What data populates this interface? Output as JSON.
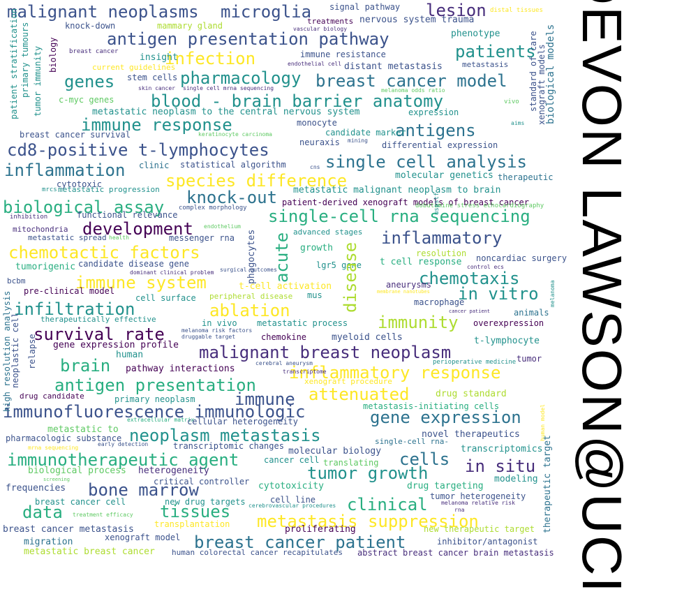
{
  "title": "DEVON LAWSON@UCI",
  "palette": {
    "p1": "#440154",
    "p2": "#472d7b",
    "p3": "#3b528b",
    "p4": "#2c728e",
    "p5": "#21918c",
    "p6": "#28ae80",
    "p7": "#5ec962",
    "p8": "#addc30",
    "p9": "#fde725"
  },
  "words": [
    {
      "text": "malignant neoplasms",
      "color": "#3b528b",
      "v": false
    },
    {
      "text": "microglia",
      "color": "#3b528b",
      "v": false
    },
    {
      "text": "lesion",
      "color": "#472d7b",
      "v": false
    },
    {
      "text": "signal pathway",
      "color": "#3b528b",
      "v": false
    },
    {
      "text": "distal tissues",
      "color": "#fde725",
      "v": false
    },
    {
      "text": "knock-down",
      "color": "#3b528b",
      "v": false
    },
    {
      "text": "mammary gland",
      "color": "#addc30",
      "v": false
    },
    {
      "text": "treatments",
      "color": "#440154",
      "v": false
    },
    {
      "text": "nervous system trauma",
      "color": "#3b528b",
      "v": false
    },
    {
      "text": "vascular biology",
      "color": "#472d7b",
      "v": false
    },
    {
      "text": "antigen presentation pathway",
      "color": "#3b528b",
      "v": false
    },
    {
      "text": "phenotype",
      "color": "#21918c",
      "v": false
    },
    {
      "text": "breast cancer",
      "color": "#472d7b",
      "v": false
    },
    {
      "text": "infection",
      "color": "#fde725",
      "v": false
    },
    {
      "text": "patients",
      "color": "#21918c",
      "v": false
    },
    {
      "text": "immune resistance",
      "color": "#3b528b",
      "v": false
    },
    {
      "text": "insight",
      "color": "#21918c",
      "v": false
    },
    {
      "text": "current guidelines",
      "color": "#fde725",
      "v": false
    },
    {
      "text": "endothelial cell",
      "color": "#472d7b",
      "v": false
    },
    {
      "text": "distant metastasis",
      "color": "#3b528b",
      "v": false
    },
    {
      "text": "metastasis",
      "color": "#3b528b",
      "v": false
    },
    {
      "text": "genes",
      "color": "#21918c",
      "v": false
    },
    {
      "text": "stem cells",
      "color": "#3b528b",
      "v": false
    },
    {
      "text": "pharmacology",
      "color": "#21918c",
      "v": false
    },
    {
      "text": "breast cancer model",
      "color": "#2c728e",
      "v": false
    },
    {
      "text": "skin cancer",
      "color": "#472d7b",
      "v": false
    },
    {
      "text": "single cell mrna sequencing",
      "color": "#472d7b",
      "v": false
    },
    {
      "text": "melanoma odds ratio",
      "color": "#5ec962",
      "v": false
    },
    {
      "text": "c-myc genes",
      "color": "#5ec962",
      "v": false
    },
    {
      "text": "blood - brain barrier anatomy",
      "color": "#21918c",
      "v": false
    },
    {
      "text": "metastatic neoplasm to the central nervous system",
      "color": "#21918c",
      "v": false
    },
    {
      "text": "expression",
      "color": "#21918c",
      "v": false
    },
    {
      "text": "vivo",
      "color": "#5ec962",
      "v": false
    },
    {
      "text": "immune response",
      "color": "#21918c",
      "v": false
    },
    {
      "text": "monocyte",
      "color": "#3b528b",
      "v": false
    },
    {
      "text": "aims",
      "color": "#21918c",
      "v": false
    },
    {
      "text": "antigens",
      "color": "#2c728e",
      "v": false
    },
    {
      "text": "breast cancer survival",
      "color": "#3b528b",
      "v": false
    },
    {
      "text": "keratinocyte carcinoma",
      "color": "#5ec962",
      "v": false
    },
    {
      "text": "candidate marker",
      "color": "#21918c",
      "v": false
    },
    {
      "text": "neuraxis",
      "color": "#3b528b",
      "v": false
    },
    {
      "text": "mining",
      "color": "#3b528b",
      "v": false
    },
    {
      "text": "differential expression",
      "color": "#3b528b",
      "v": false
    },
    {
      "text": "cd8-positive t-lymphocytes",
      "color": "#3b528b",
      "v": false
    },
    {
      "text": "inflammation",
      "color": "#2c728e",
      "v": false
    },
    {
      "text": "clinic",
      "color": "#2c728e",
      "v": false
    },
    {
      "text": "statistical algorithm",
      "color": "#3b528b",
      "v": false
    },
    {
      "text": "cns",
      "color": "#3b528b",
      "v": false
    },
    {
      "text": "single cell analysis",
      "color": "#2c728e",
      "v": false
    },
    {
      "text": "molecular genetics",
      "color": "#21918c",
      "v": false
    },
    {
      "text": "therapeutic",
      "color": "#2c728e",
      "v": false
    },
    {
      "text": "cytotoxic",
      "color": "#3b528b",
      "v": false
    },
    {
      "text": "species difference",
      "color": "#fde725",
      "v": false
    },
    {
      "text": "mrcs",
      "color": "#21918c",
      "v": false
    },
    {
      "text": "metastatic progression",
      "color": "#21918c",
      "v": false
    },
    {
      "text": "knock-out",
      "color": "#2c728e",
      "v": false
    },
    {
      "text": "metastatic malignant neoplasm to brain",
      "color": "#21918c",
      "v": false
    },
    {
      "text": "biological assay",
      "color": "#28ae80",
      "v": false
    },
    {
      "text": "patient-derived xenograft models of breast cancer",
      "color": "#440154",
      "v": false
    },
    {
      "text": "complex morphology",
      "color": "#3b528b",
      "v": false
    },
    {
      "text": "dobutamine stress echocardiography",
      "color": "#5ec962",
      "v": false
    },
    {
      "text": "inhibition",
      "color": "#472d7b",
      "v": false
    },
    {
      "text": "functional relevance",
      "color": "#3b528b",
      "v": false
    },
    {
      "text": "single-cell rna sequencing",
      "color": "#28ae80",
      "v": false
    },
    {
      "text": "development",
      "color": "#440154",
      "v": false
    },
    {
      "text": "mitochondria",
      "color": "#472d7b",
      "v": false
    },
    {
      "text": "endothelium",
      "color": "#5ec962",
      "v": false
    },
    {
      "text": "advanced stages",
      "color": "#21918c",
      "v": false
    },
    {
      "text": "inflammatory",
      "color": "#3b528b",
      "v": false
    },
    {
      "text": "metastatic spread",
      "color": "#3b528b",
      "v": false
    },
    {
      "text": "health",
      "color": "#5ec962",
      "v": false
    },
    {
      "text": "messenger rna",
      "color": "#3b528b",
      "v": false
    },
    {
      "text": "chemotactic factors",
      "color": "#fde725",
      "v": false
    },
    {
      "text": "growth",
      "color": "#28ae80",
      "v": false
    },
    {
      "text": "resolution",
      "color": "#addc30",
      "v": false
    },
    {
      "text": "noncardiac surgery",
      "color": "#3b528b",
      "v": false
    },
    {
      "text": "candidate disease gene",
      "color": "#3b528b",
      "v": false
    },
    {
      "text": "lgr5 gene",
      "color": "#21918c",
      "v": false
    },
    {
      "text": "t cell response",
      "color": "#28ae80",
      "v": false
    },
    {
      "text": "tumorigenic",
      "color": "#28ae80",
      "v": false
    },
    {
      "text": "dominant clinical problem",
      "color": "#472d7b",
      "v": false
    },
    {
      "text": "surgical outcomes",
      "color": "#3b528b",
      "v": false
    },
    {
      "text": "control ecs",
      "color": "#472d7b",
      "v": false
    },
    {
      "text": "bcbm",
      "color": "#3b528b",
      "v": false
    },
    {
      "text": "immune system",
      "color": "#fde725",
      "v": false
    },
    {
      "text": "chemotaxis",
      "color": "#21918c",
      "v": false
    },
    {
      "text": "pre-clinical model",
      "color": "#440154",
      "v": false
    },
    {
      "text": "t-cell activation",
      "color": "#fde725",
      "v": false
    },
    {
      "text": "aneurysms",
      "color": "#472d7b",
      "v": false
    },
    {
      "text": "membrane nanotubes",
      "color": "#fde725",
      "v": false
    },
    {
      "text": "cell surface",
      "color": "#21918c",
      "v": false
    },
    {
      "text": "peripheral disease",
      "color": "#addc30",
      "v": false
    },
    {
      "text": "mus",
      "color": "#21918c",
      "v": false
    },
    {
      "text": "in vitro",
      "color": "#21918c",
      "v": false
    },
    {
      "text": "macrophage",
      "color": "#3b528b",
      "v": false
    },
    {
      "text": "infiltration",
      "color": "#21918c",
      "v": false
    },
    {
      "text": "ablation",
      "color": "#fde725",
      "v": false
    },
    {
      "text": "cancer patient",
      "color": "#472d7b",
      "v": false
    },
    {
      "text": "therapeutically effective",
      "color": "#21918c",
      "v": false
    },
    {
      "text": "in vivo",
      "color": "#21918c",
      "v": false
    },
    {
      "text": "metastatic process",
      "color": "#21918c",
      "v": false
    },
    {
      "text": "immunity",
      "color": "#addc30",
      "v": false
    },
    {
      "text": "animals",
      "color": "#2c728e",
      "v": false
    },
    {
      "text": "overexpression",
      "color": "#440154",
      "v": false
    },
    {
      "text": "survival rate",
      "color": "#440154",
      "v": false
    },
    {
      "text": "melanoma risk factors",
      "color": "#3b528b",
      "v": false
    },
    {
      "text": "chemokine",
      "color": "#440154",
      "v": false
    },
    {
      "text": "myeloid cells",
      "color": "#3b528b",
      "v": false
    },
    {
      "text": "druggable target",
      "color": "#3b528b",
      "v": false
    },
    {
      "text": "t-lymphocyte",
      "color": "#21918c",
      "v": false
    },
    {
      "text": "gene expression profile",
      "color": "#440154",
      "v": false
    },
    {
      "text": "malignant breast neoplasm",
      "color": "#472d7b",
      "v": false
    },
    {
      "text": "human",
      "color": "#21918c",
      "v": false
    },
    {
      "text": "tumor",
      "color": "#472d7b",
      "v": false
    },
    {
      "text": "brain",
      "color": "#28ae80",
      "v": false
    },
    {
      "text": "pathway interactions",
      "color": "#440154",
      "v": false
    },
    {
      "text": "cerebral aneurysm",
      "color": "#3b528b",
      "v": false
    },
    {
      "text": "perioperative medicine",
      "color": "#21918c",
      "v": false
    },
    {
      "text": "inflammatory response",
      "color": "#fde725",
      "v": false
    },
    {
      "text": "transcriptome",
      "color": "#472d7b",
      "v": false
    },
    {
      "text": "antigen presentation",
      "color": "#28ae80",
      "v": false
    },
    {
      "text": "xenograft procedure",
      "color": "#fde725",
      "v": false
    },
    {
      "text": "drug candidate",
      "color": "#440154",
      "v": false
    },
    {
      "text": "attenuated",
      "color": "#fde725",
      "v": false
    },
    {
      "text": "drug standard",
      "color": "#addc30",
      "v": false
    },
    {
      "text": "immune",
      "color": "#3b528b",
      "v": false
    },
    {
      "text": "primary neoplasm",
      "color": "#21918c",
      "v": false
    },
    {
      "text": "metastasis-initiating cells",
      "color": "#28ae80",
      "v": false
    },
    {
      "text": "immunofluorescence immunologic",
      "color": "#3b528b",
      "v": false
    },
    {
      "text": "gene expression",
      "color": "#2c728e",
      "v": false
    },
    {
      "text": "extracellular matrix",
      "color": "#28ae80",
      "v": false
    },
    {
      "text": "cellular heterogeneity",
      "color": "#3b528b",
      "v": false
    },
    {
      "text": "metastatic to",
      "color": "#5ec962",
      "v": false
    },
    {
      "text": "neoplasm metastasis",
      "color": "#21918c",
      "v": false
    },
    {
      "text": "novel therapeutics",
      "color": "#3b528b",
      "v": false
    },
    {
      "text": "pharmacologic substance",
      "color": "#3b528b",
      "v": false
    },
    {
      "text": "early detection",
      "color": "#3b528b",
      "v": false
    },
    {
      "text": "transcriptomic changes",
      "color": "#3b528b",
      "v": false
    },
    {
      "text": "single-cell rna-",
      "color": "#2c728e",
      "v": false
    },
    {
      "text": "mrna sequencing",
      "color": "#fde725",
      "v": false
    },
    {
      "text": "transcriptomics",
      "color": "#21918c",
      "v": false
    },
    {
      "text": "immunotherapeutic agent",
      "color": "#28ae80",
      "v": false
    },
    {
      "text": "molecular biology",
      "color": "#3b528b",
      "v": false
    },
    {
      "text": "cells",
      "color": "#2c728e",
      "v": false
    },
    {
      "text": "cancer cell",
      "color": "#21918c",
      "v": false
    },
    {
      "text": "translating",
      "color": "#5ec962",
      "v": false
    },
    {
      "text": "in situ",
      "color": "#472d7b",
      "v": false
    },
    {
      "text": "biological process",
      "color": "#5ec962",
      "v": false
    },
    {
      "text": "heterogeneity",
      "color": "#472d7b",
      "v": false
    },
    {
      "text": "tumor growth",
      "color": "#21918c",
      "v": false
    },
    {
      "text": "screening",
      "color": "#5ec962",
      "v": false
    },
    {
      "text": "critical controller",
      "color": "#3b528b",
      "v": false
    },
    {
      "text": "modeling",
      "color": "#21918c",
      "v": false
    },
    {
      "text": "bone marrow",
      "color": "#3b528b",
      "v": false
    },
    {
      "text": "frequencies",
      "color": "#3b528b",
      "v": false
    },
    {
      "text": "cytotoxicity",
      "color": "#28ae80",
      "v": false
    },
    {
      "text": "drug targeting",
      "color": "#28ae80",
      "v": false
    },
    {
      "text": "tumor heterogeneity",
      "color": "#3b528b",
      "v": false
    },
    {
      "text": "breast cancer cell",
      "color": "#21918c",
      "v": false
    },
    {
      "text": "new drug targets",
      "color": "#21918c",
      "v": false
    },
    {
      "text": "cell line",
      "color": "#3b528b",
      "v": false
    },
    {
      "text": "clinical",
      "color": "#28ae80",
      "v": false
    },
    {
      "text": "melanoma relative risk",
      "color": "#472d7b",
      "v": false
    },
    {
      "text": "data",
      "color": "#28ae80",
      "v": false
    },
    {
      "text": "treatment efficacy",
      "color": "#5ec962",
      "v": false
    },
    {
      "text": "tissues",
      "color": "#28ae80",
      "v": false
    },
    {
      "text": "cerebrovascular procedures",
      "color": "#21918c",
      "v": false
    },
    {
      "text": "rna",
      "color": "#472d7b",
      "v": false
    },
    {
      "text": "breast cancer metastasis",
      "color": "#3b528b",
      "v": false
    },
    {
      "text": "transplantation",
      "color": "#fde725",
      "v": false
    },
    {
      "text": "metastasis suppression",
      "color": "#fde725",
      "v": false
    },
    {
      "text": "proliferating",
      "color": "#440154",
      "v": false
    },
    {
      "text": "new therapeutic target",
      "color": "#addc30",
      "v": false
    },
    {
      "text": "xenograft model",
      "color": "#3b528b",
      "v": false
    },
    {
      "text": "migration",
      "color": "#2c728e",
      "v": false
    },
    {
      "text": "breast cancer patient",
      "color": "#2c728e",
      "v": false
    },
    {
      "text": "inhibitor/antagonist",
      "color": "#3b528b",
      "v": false
    },
    {
      "text": "metastatic breast cancer",
      "color": "#addc30",
      "v": false
    },
    {
      "text": "human colorectal cancer recapitulates",
      "color": "#3b528b",
      "v": false
    },
    {
      "text": "abstract breast cancer brain metastasis",
      "color": "#472d7b",
      "v": false
    },
    {
      "text": "patient stratification",
      "color": "#21918c",
      "v": true
    },
    {
      "text": "primary tumours",
      "color": "#21918c",
      "v": true
    },
    {
      "text": "tumor immunity",
      "color": "#21918c",
      "v": true
    },
    {
      "text": "biology",
      "color": "#440154",
      "v": true
    },
    {
      "text": "standard of care",
      "color": "#3b528b",
      "v": true
    },
    {
      "text": "xenograft models",
      "color": "#3b528b",
      "v": true
    },
    {
      "text": "biological models",
      "color": "#2c728e",
      "v": true
    },
    {
      "text": "phagocytes",
      "color": "#3b528b",
      "v": true
    },
    {
      "text": "acute",
      "color": "#28ae80",
      "v": true
    },
    {
      "text": "disease",
      "color": "#addc30",
      "v": true
    },
    {
      "text": "uspstf",
      "color": "#21918c",
      "v": true
    },
    {
      "text": "melanoma",
      "color": "#21918c",
      "v": true
    },
    {
      "text": "high resolution analysis",
      "color": "#2c728e",
      "v": true
    },
    {
      "text": "neoplastic cell",
      "color": "#3b528b",
      "v": true
    },
    {
      "text": "relapse",
      "color": "#3b528b",
      "v": true
    },
    {
      "text": "therapeutic target",
      "color": "#2c728e",
      "v": true
    },
    {
      "text": "human model",
      "color": "#fde725",
      "v": true
    }
  ]
}
